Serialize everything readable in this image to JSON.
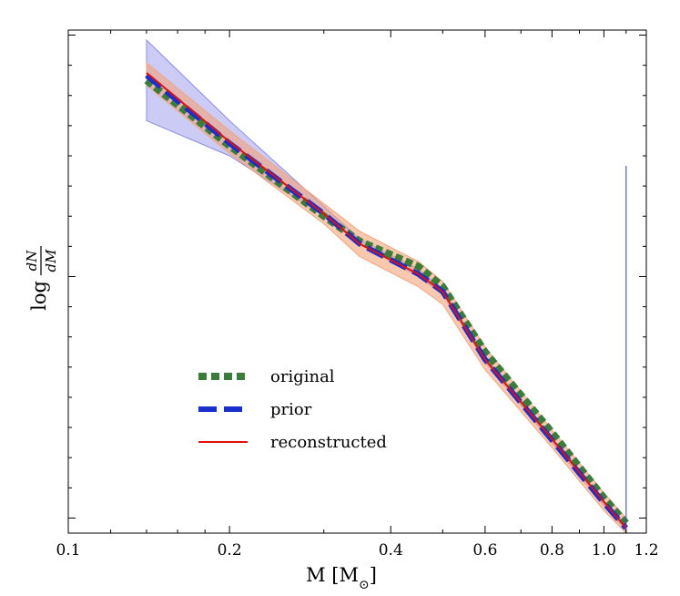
{
  "chart_data": {
    "type": "line",
    "title": "",
    "xlabel": "M [M",
    "xlabel_sub": "⊙",
    "xlabel_close": "]",
    "ylabel_prefix": "log",
    "ylabel_num": "dN",
    "ylabel_den": "dM",
    "xscale": "log",
    "xlim": [
      0.1,
      1.2
    ],
    "ylim": [
      0,
      1
    ],
    "x_ticks": [
      {
        "value": 0.1,
        "label": "0.1"
      },
      {
        "value": 0.2,
        "label": "0.2"
      },
      {
        "value": 0.4,
        "label": "0.4"
      },
      {
        "value": 0.6,
        "label": "0.6"
      },
      {
        "value": 0.8,
        "label": "0.8"
      },
      {
        "value": 1.0,
        "label": "1.0"
      },
      {
        "value": 1.2,
        "label": "1.2"
      }
    ],
    "y_tick_labels_shown": false,
    "grid": false,
    "legend_position": "lower-left",
    "series": [
      {
        "name": "original",
        "style": "dotted",
        "color": "#3a7d3a",
        "x": [
          0.14,
          0.2,
          0.3,
          0.35,
          0.45,
          0.5,
          0.6,
          0.8,
          1.0,
          1.1
        ],
        "y": [
          0.9,
          0.77,
          0.63,
          0.58,
          0.53,
          0.49,
          0.36,
          0.2,
          0.07,
          0.02
        ]
      },
      {
        "name": "prior",
        "style": "dashed",
        "color": "#1a2fd0",
        "x": [
          0.14,
          0.2,
          0.3,
          0.35,
          0.45,
          0.5,
          0.6,
          0.8,
          1.0,
          1.1
        ],
        "y": [
          0.91,
          0.775,
          0.635,
          0.575,
          0.515,
          0.48,
          0.345,
          0.185,
          0.06,
          0.01
        ]
      },
      {
        "name": "reconstructed",
        "style": "solid",
        "color": "#e01010",
        "x": [
          0.14,
          0.2,
          0.3,
          0.35,
          0.45,
          0.5,
          0.6,
          0.8,
          1.0,
          1.1
        ],
        "y": [
          0.915,
          0.778,
          0.635,
          0.575,
          0.515,
          0.48,
          0.345,
          0.187,
          0.062,
          0.01
        ]
      }
    ],
    "bands": [
      {
        "color": "#8c8ce8",
        "x": [
          0.14,
          0.2,
          0.3,
          0.35,
          0.45,
          0.5,
          0.6,
          0.8,
          1.0,
          1.1
        ],
        "y_low": [
          0.82,
          0.75,
          0.63,
          0.575,
          0.51,
          0.475,
          0.34,
          0.18,
          0.055,
          0.005
        ],
        "y_high": [
          0.98,
          0.82,
          0.65,
          0.585,
          0.525,
          0.485,
          0.35,
          0.19,
          0.065,
          0.015
        ]
      },
      {
        "color": "#f4a47a",
        "x": [
          0.14,
          0.2,
          0.3,
          0.35,
          0.45,
          0.5,
          0.6,
          0.8,
          1.0,
          1.1
        ],
        "y_low": [
          0.89,
          0.755,
          0.615,
          0.55,
          0.49,
          0.455,
          0.325,
          0.17,
          0.045,
          0.0
        ],
        "y_high": [
          0.935,
          0.8,
          0.655,
          0.6,
          0.54,
          0.5,
          0.37,
          0.205,
          0.08,
          0.03
        ]
      }
    ],
    "spike": {
      "color": "#3a46d0",
      "x": 1.1,
      "y_top": 0.73
    }
  }
}
